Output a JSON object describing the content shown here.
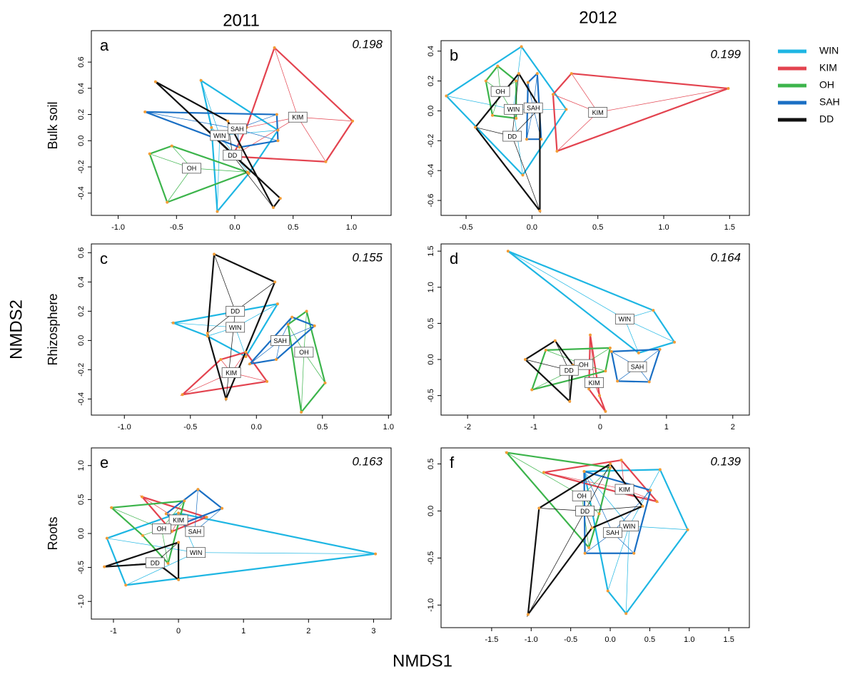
{
  "columns": [
    "2011",
    "2012"
  ],
  "rows": [
    "Bulk soil",
    "Rhizosphere",
    "Roots"
  ],
  "x_label": "NMDS1",
  "y_label": "NMDS2",
  "chart_data": [
    {
      "type": "nmds",
      "letter": "a",
      "stress": 0.198,
      "xlim": [
        -1.23,
        1.34
      ],
      "ylim": [
        -0.57,
        0.84
      ],
      "xticks": [
        {
          "value": -1,
          "label": "-1.0"
        },
        -0.5,
        {
          "value": 0,
          "label": "0.0"
        },
        0.5,
        {
          "value": 1,
          "label": "1.0"
        }
      ],
      "yticks": [
        -0.4,
        -0.2,
        {
          "value": 0,
          "label": "0.0"
        },
        0.2,
        0.4,
        0.6
      ],
      "series": [
        {
          "name": "WIN",
          "color": "#1eb6e3",
          "x": [
            -0.29,
            0.37,
            0.12,
            -0.15,
            -0.2
          ],
          "y": [
            0.46,
            0.08,
            -0.25,
            -0.54,
            0.1
          ],
          "cx": -0.13,
          "cy": 0.04
        },
        {
          "name": "KIM",
          "color": "#e3434f",
          "x": [
            0.34,
            1.01,
            0.78,
            -0.02,
            0.1
          ],
          "y": [
            0.71,
            0.15,
            -0.16,
            -0.12,
            0.1
          ],
          "cx": 0.54,
          "cy": 0.18
        },
        {
          "name": "OH",
          "color": "#3cb44b",
          "x": [
            -0.73,
            -0.54,
            0.11,
            -0.58
          ],
          "y": [
            -0.1,
            -0.04,
            -0.24,
            -0.47
          ],
          "cx": -0.37,
          "cy": -0.21
        },
        {
          "name": "SAH",
          "color": "#1a6fc4",
          "x": [
            -0.77,
            0.36,
            0.37,
            0.04
          ],
          "y": [
            0.22,
            0.2,
            0.0,
            -0.05
          ],
          "cx": 0.02,
          "cy": 0.09
        },
        {
          "name": "DD",
          "color": "#111111",
          "x": [
            -0.68,
            0.39,
            0.33,
            -0.06
          ],
          "y": [
            0.45,
            -0.44,
            -0.51,
            0.15
          ],
          "cx": -0.02,
          "cy": -0.11
        }
      ]
    },
    {
      "type": "nmds",
      "letter": "b",
      "stress": 0.199,
      "xlim": [
        -0.69,
        1.65
      ],
      "ylim": [
        -0.7,
        0.47
      ],
      "xticks": [
        -0.5,
        {
          "value": 0,
          "label": "0.0"
        },
        0.5,
        {
          "value": 1,
          "label": "1.0"
        },
        1.5
      ],
      "yticks": [
        -0.6,
        -0.4,
        -0.2,
        {
          "value": 0,
          "label": "0.0"
        },
        0.2,
        0.4
      ],
      "series": [
        {
          "name": "WIN",
          "color": "#1eb6e3",
          "x": [
            -0.08,
            0.26,
            -0.07,
            -0.65
          ],
          "y": [
            0.43,
            0.01,
            -0.43,
            0.1
          ],
          "cx": -0.14,
          "cy": 0.01
        },
        {
          "name": "KIM",
          "color": "#e3434f",
          "x": [
            0.3,
            1.49,
            0.19,
            0.16
          ],
          "y": [
            0.25,
            0.15,
            -0.27,
            0.11
          ],
          "cx": 0.5,
          "cy": -0.01
        },
        {
          "name": "OH",
          "color": "#3cb44b",
          "x": [
            -0.26,
            -0.12,
            -0.12,
            -0.3,
            -0.35
          ],
          "y": [
            0.3,
            0.2,
            -0.05,
            -0.03,
            0.2
          ],
          "cx": -0.24,
          "cy": 0.13
        },
        {
          "name": "SAH",
          "color": "#1a6fc4",
          "x": [
            0.04,
            0.07,
            -0.04,
            -0.03
          ],
          "y": [
            0.25,
            -0.19,
            -0.19,
            0.19
          ],
          "cx": 0.01,
          "cy": 0.02
        },
        {
          "name": "DD",
          "color": "#111111",
          "x": [
            -0.1,
            -0.43,
            0.06,
            0.06
          ],
          "y": [
            0.25,
            -0.11,
            -0.67,
            0.02
          ],
          "cx": -0.15,
          "cy": -0.17
        }
      ]
    },
    {
      "type": "nmds",
      "letter": "c",
      "stress": 0.155,
      "xlim": [
        -1.25,
        1.02
      ],
      "ylim": [
        -0.51,
        0.66
      ],
      "xticks": [
        {
          "value": -1,
          "label": "-1.0"
        },
        -0.5,
        {
          "value": 0,
          "label": "0.0"
        },
        0.5,
        {
          "value": 1,
          "label": "1.0"
        }
      ],
      "yticks": [
        -0.4,
        -0.2,
        {
          "value": 0,
          "label": "0.0"
        },
        0.2,
        0.4,
        0.6
      ],
      "series": [
        {
          "name": "WIN",
          "color": "#1eb6e3",
          "x": [
            -0.63,
            0.16,
            -0.08,
            -0.37
          ],
          "y": [
            0.12,
            0.25,
            -0.11,
            0.03
          ],
          "cx": -0.16,
          "cy": 0.09
        },
        {
          "name": "KIM",
          "color": "#e3434f",
          "x": [
            -0.56,
            0.08,
            -0.08,
            -0.27
          ],
          "y": [
            -0.37,
            -0.28,
            -0.08,
            -0.13
          ],
          "cx": -0.19,
          "cy": -0.22
        },
        {
          "name": "OH",
          "color": "#3cb44b",
          "x": [
            0.38,
            0.52,
            0.34,
            0.24
          ],
          "y": [
            0.2,
            -0.29,
            -0.49,
            0.11
          ],
          "cx": 0.36,
          "cy": -0.08
        },
        {
          "name": "SAH",
          "color": "#1a6fc4",
          "x": [
            -0.05,
            0.27,
            0.44,
            0.15
          ],
          "y": [
            -0.16,
            0.16,
            0.1,
            -0.13
          ],
          "cx": 0.18,
          "cy": 0.0
        },
        {
          "name": "DD",
          "color": "#111111",
          "x": [
            -0.32,
            0.14,
            -0.23,
            -0.37
          ],
          "y": [
            0.59,
            0.4,
            -0.4,
            0.05
          ],
          "cx": -0.16,
          "cy": 0.2
        }
      ]
    },
    {
      "type": "nmds",
      "letter": "d",
      "stress": 0.164,
      "xlim": [
        -2.4,
        2.25
      ],
      "ylim": [
        -0.77,
        1.6
      ],
      "xticks": [
        -2,
        -1,
        0,
        1,
        2
      ],
      "yticks": [
        -0.5,
        {
          "value": 0,
          "label": "0.0"
        },
        0.5,
        {
          "value": 1,
          "label": "1.0"
        },
        1.5
      ],
      "series": [
        {
          "name": "WIN",
          "color": "#1eb6e3",
          "x": [
            -1.39,
            0.8,
            1.12,
            0.58
          ],
          "y": [
            1.5,
            0.68,
            0.24,
            0.09
          ],
          "cx": 0.37,
          "cy": 0.56
        },
        {
          "name": "KIM",
          "color": "#e3434f",
          "x": [
            -0.15,
            -0.01,
            0.08,
            -0.17
          ],
          "y": [
            0.34,
            -0.5,
            -0.72,
            -0.41
          ],
          "cx": -0.09,
          "cy": -0.32
        },
        {
          "name": "OH",
          "color": "#3cb44b",
          "x": [
            -0.82,
            0.15,
            0.08,
            -1.03
          ],
          "y": [
            0.13,
            0.16,
            -0.16,
            -0.42
          ],
          "cx": -0.25,
          "cy": -0.07
        },
        {
          "name": "SAH",
          "color": "#1a6fc4",
          "x": [
            0.17,
            0.9,
            0.74,
            0.26
          ],
          "y": [
            0.11,
            0.14,
            -0.31,
            -0.3
          ],
          "cx": 0.56,
          "cy": -0.1
        },
        {
          "name": "DD",
          "color": "#111111",
          "x": [
            -1.13,
            -0.68,
            -0.41,
            -0.46
          ],
          "y": [
            0.0,
            0.26,
            -0.08,
            -0.58
          ],
          "cx": -0.47,
          "cy": -0.15
        }
      ]
    },
    {
      "type": "nmds",
      "letter": "e",
      "stress": 0.163,
      "xlim": [
        -1.34,
        3.27
      ],
      "ylim": [
        -1.26,
        1.26
      ],
      "xticks": [
        -1,
        0,
        1,
        2,
        3
      ],
      "yticks": [
        {
          "value": -1,
          "label": "-1.0"
        },
        -0.5,
        {
          "value": 0,
          "label": "0.0"
        },
        0.5,
        {
          "value": 1,
          "label": "1.0"
        }
      ],
      "series": [
        {
          "name": "WIN",
          "color": "#1eb6e3",
          "x": [
            -1.1,
            0.0,
            3.03,
            -0.81
          ],
          "y": [
            -0.07,
            0.3,
            -0.3,
            -0.76
          ],
          "cx": 0.27,
          "cy": -0.28
        },
        {
          "name": "KIM",
          "color": "#e3434f",
          "x": [
            -0.56,
            0.43,
            -0.1
          ],
          "y": [
            0.54,
            0.24,
            0.03
          ],
          "cx": 0.0,
          "cy": 0.2
        },
        {
          "name": "OH",
          "color": "#3cb44b",
          "x": [
            -1.03,
            0.09,
            -0.16,
            -0.55
          ],
          "y": [
            0.38,
            0.48,
            -0.44,
            -0.03
          ],
          "cx": -0.26,
          "cy": 0.07
        },
        {
          "name": "SAH",
          "color": "#1a6fc4",
          "x": [
            0.3,
            0.67,
            0.05,
            -0.19
          ],
          "y": [
            0.65,
            0.37,
            0.14,
            0.29
          ],
          "cx": 0.25,
          "cy": 0.03
        },
        {
          "name": "DD",
          "color": "#111111",
          "x": [
            -1.14,
            0.0,
            0.0,
            -0.32
          ],
          "y": [
            -0.49,
            -0.13,
            -0.68,
            -0.44
          ],
          "cx": -0.36,
          "cy": -0.43
        }
      ]
    },
    {
      "type": "nmds",
      "letter": "f",
      "stress": 0.139,
      "xlim": [
        -2.14,
        1.76
      ],
      "ylim": [
        -1.24,
        0.67
      ],
      "xticks": [
        -1.5,
        {
          "value": -1,
          "label": "-1.0"
        },
        -0.5,
        {
          "value": 0,
          "label": "0.0"
        },
        0.5,
        {
          "value": 1,
          "label": "1.0"
        },
        1.5
      ],
      "yticks": [
        {
          "value": -1,
          "label": "-1.0"
        },
        -0.5,
        {
          "value": 0,
          "label": "0.0"
        },
        0.5
      ],
      "series": [
        {
          "name": "WIN",
          "color": "#1eb6e3",
          "x": [
            -0.33,
            0.63,
            0.98,
            0.2,
            -0.03
          ],
          "y": [
            0.42,
            0.44,
            -0.2,
            -1.09,
            -0.85
          ],
          "cx": 0.24,
          "cy": -0.16
        },
        {
          "name": "KIM",
          "color": "#e3434f",
          "x": [
            -0.84,
            0.14,
            0.59,
            0.14
          ],
          "y": [
            0.41,
            0.54,
            0.1,
            0.19
          ],
          "cx": 0.18,
          "cy": 0.23
        },
        {
          "name": "OH",
          "color": "#3cb44b",
          "x": [
            -1.31,
            0.0,
            -0.14,
            -0.27
          ],
          "y": [
            0.62,
            0.46,
            -0.03,
            -0.39
          ],
          "cx": -0.36,
          "cy": 0.16
        },
        {
          "name": "SAH",
          "color": "#1a6fc4",
          "x": [
            -0.33,
            0.51,
            0.3,
            -0.32
          ],
          "y": [
            0.42,
            0.22,
            -0.45,
            -0.45
          ],
          "cx": 0.03,
          "cy": -0.23
        },
        {
          "name": "DD",
          "color": "#111111",
          "x": [
            -0.9,
            0.0,
            0.41,
            -0.23,
            -1.04
          ],
          "y": [
            0.03,
            0.5,
            0.05,
            -0.18,
            -1.1
          ],
          "cx": -0.32,
          "cy": 0.0
        }
      ]
    }
  ]
}
